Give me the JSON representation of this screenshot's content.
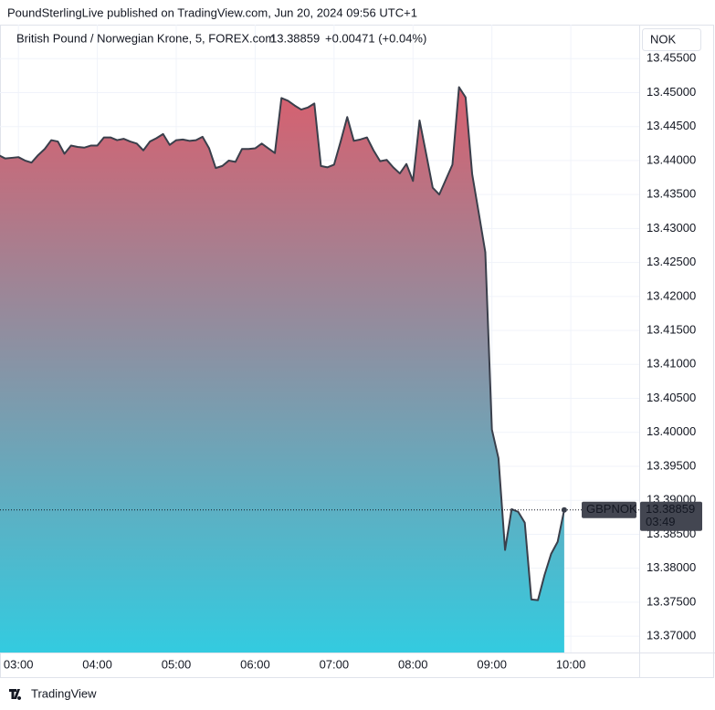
{
  "chart_data": {
    "type": "area",
    "header": "PoundSterlingLive published on TradingView.com, Jun 20, 2024 09:56 UTC+1",
    "legend": {
      "symbol": "British Pound / Norwegian Krone, 5, FOREX.com",
      "price": "13.38859",
      "change": "+0.00471 (+0.04%)"
    },
    "currency": "NOK",
    "price_tag": {
      "symbol": "GBPNOK",
      "price": "13.38859",
      "countdown": "03:49"
    },
    "footer": "TradingView",
    "series": [
      {
        "name": "GBPNOK",
        "color": "#3a3f4b",
        "fill_top": "#d85f6e",
        "fill_bottom": "#33cbe0",
        "x": [
          165,
          170,
          175,
          180,
          185,
          190,
          195,
          200,
          205,
          210,
          215,
          220,
          225,
          230,
          235,
          240,
          245,
          250,
          255,
          260,
          265,
          270,
          275,
          280,
          285,
          290,
          295,
          300,
          305,
          310,
          315,
          320,
          325,
          330,
          335,
          340,
          345,
          350,
          355,
          360,
          365,
          370,
          375,
          380,
          385,
          390,
          395,
          400,
          405,
          410,
          415,
          420,
          425,
          430,
          435,
          440,
          445,
          450,
          455,
          460,
          465,
          470,
          475,
          480,
          485,
          490,
          495,
          500,
          505,
          510,
          515,
          520,
          525,
          530,
          535,
          540,
          545,
          550,
          555,
          560,
          565,
          570,
          575,
          580,
          585,
          590,
          595
        ],
        "values": [
          13.4408,
          13.4403,
          13.4404,
          13.4405,
          13.44,
          13.4397,
          13.4408,
          13.4417,
          13.443,
          13.4428,
          13.441,
          13.4422,
          13.442,
          13.4419,
          13.4422,
          13.4422,
          13.4434,
          13.4434,
          13.443,
          13.4432,
          13.4428,
          13.4425,
          13.4415,
          13.4428,
          13.4433,
          13.4439,
          13.4423,
          13.443,
          13.4431,
          13.4429,
          13.443,
          13.4435,
          13.4418,
          13.4389,
          13.4392,
          13.44,
          13.4398,
          13.4417,
          13.4417,
          13.4418,
          13.4425,
          13.4418,
          13.4411,
          13.4492,
          13.4488,
          13.4481,
          13.4475,
          13.4478,
          13.4484,
          13.4392,
          13.439,
          13.4394,
          13.4428,
          13.4464,
          13.4429,
          13.4431,
          13.4434,
          13.4415,
          13.4399,
          13.4401,
          13.439,
          13.4381,
          13.4395,
          13.437,
          13.4459,
          13.441,
          13.436,
          13.435,
          13.4372,
          13.4394,
          13.4508,
          13.4493,
          13.438,
          13.4323,
          13.4265,
          13.4004,
          13.3962,
          13.3827,
          13.3887,
          13.3883,
          13.3867,
          13.3754,
          13.3753,
          13.379,
          13.3821,
          13.3839,
          13.38859
        ]
      }
    ],
    "xlim": [
      166,
      652
    ],
    "xticks": [
      {
        "value": 180,
        "label": "03:00"
      },
      {
        "value": 240,
        "label": "04:00"
      },
      {
        "value": 300,
        "label": "05:00"
      },
      {
        "value": 360,
        "label": "06:00"
      },
      {
        "value": 420,
        "label": "07:00"
      },
      {
        "value": 480,
        "label": "08:00"
      },
      {
        "value": 540,
        "label": "09:00"
      },
      {
        "value": 600,
        "label": "10:00"
      }
    ],
    "ylim": [
      13.3676,
      13.46
    ],
    "yticks": [
      {
        "value": 13.37,
        "label": "13.37000"
      },
      {
        "value": 13.375,
        "label": "13.37500"
      },
      {
        "value": 13.38,
        "label": "13.38000"
      },
      {
        "value": 13.385,
        "label": "13.38500"
      },
      {
        "value": 13.39,
        "label": "13.39000"
      },
      {
        "value": 13.395,
        "label": "13.39500"
      },
      {
        "value": 13.4,
        "label": "13.40000"
      },
      {
        "value": 13.405,
        "label": "13.40500"
      },
      {
        "value": 13.41,
        "label": "13.41000"
      },
      {
        "value": 13.415,
        "label": "13.41500"
      },
      {
        "value": 13.42,
        "label": "13.42000"
      },
      {
        "value": 13.425,
        "label": "13.42500"
      },
      {
        "value": 13.43,
        "label": "13.43000"
      },
      {
        "value": 13.435,
        "label": "13.43500"
      },
      {
        "value": 13.44,
        "label": "13.44000"
      },
      {
        "value": 13.445,
        "label": "13.44500"
      },
      {
        "value": 13.45,
        "label": "13.45000"
      },
      {
        "value": 13.455,
        "label": "13.45500"
      }
    ],
    "grid": true
  }
}
